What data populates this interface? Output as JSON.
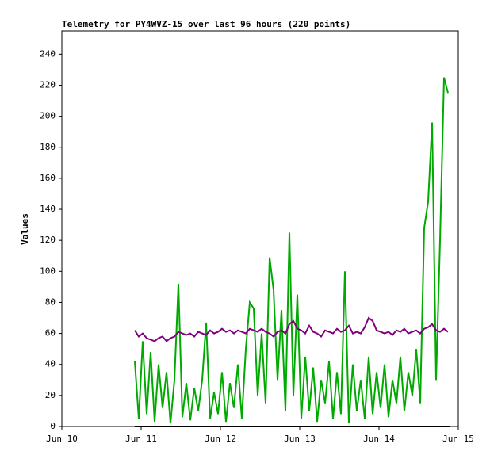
{
  "chart_data": {
    "type": "line",
    "title": "Telemetry for PY4WVZ-15 over last 96 hours (220 points)",
    "y_label": "Values",
    "x": [
      10.92,
      10.97,
      11.02,
      11.07,
      11.12,
      11.17,
      11.22,
      11.27,
      11.32,
      11.37,
      11.42,
      11.47,
      11.52,
      11.57,
      11.62,
      11.67,
      11.72,
      11.77,
      11.82,
      11.87,
      11.92,
      11.97,
      12.02,
      12.07,
      12.12,
      12.17,
      12.22,
      12.27,
      12.32,
      12.37,
      12.42,
      12.47,
      12.52,
      12.57,
      12.62,
      12.67,
      12.72,
      12.77,
      12.82,
      12.87,
      12.92,
      12.97,
      13.02,
      13.07,
      13.12,
      13.17,
      13.22,
      13.27,
      13.32,
      13.37,
      13.42,
      13.47,
      13.52,
      13.57,
      13.62,
      13.67,
      13.72,
      13.77,
      13.82,
      13.87,
      13.92,
      13.97,
      14.02,
      14.07,
      14.12,
      14.17,
      14.22,
      14.27,
      14.32,
      14.37,
      14.42,
      14.47,
      14.52,
      14.57,
      14.62,
      14.67,
      14.72,
      14.77,
      14.82,
      14.87
    ],
    "series": [
      {
        "color": "#00aa00",
        "values": [
          42,
          5,
          55,
          8,
          48,
          3,
          40,
          12,
          35,
          2,
          30,
          92,
          6,
          28,
          4,
          25,
          10,
          30,
          67,
          5,
          22,
          8,
          35,
          3,
          28,
          12,
          40,
          5,
          50,
          80,
          76,
          20,
          60,
          15,
          109,
          88,
          30,
          75,
          10,
          125,
          20,
          85,
          5,
          45,
          10,
          38,
          3,
          30,
          15,
          42,
          5,
          35,
          8,
          100,
          2,
          40,
          10,
          30,
          5,
          45,
          8,
          35,
          12,
          40,
          6,
          30,
          15,
          45,
          10,
          35,
          20,
          50,
          15,
          128,
          145,
          196,
          30,
          120,
          225,
          215
        ]
      },
      {
        "color": "#800080",
        "values": [
          62,
          58,
          60,
          57,
          56,
          55,
          57,
          58,
          55,
          57,
          58,
          61,
          60,
          59,
          60,
          58,
          61,
          60,
          59,
          62,
          60,
          61,
          63,
          61,
          62,
          60,
          62,
          61,
          60,
          63,
          62,
          61,
          63,
          61,
          60,
          58,
          61,
          62,
          60,
          66,
          68,
          63,
          62,
          60,
          65,
          61,
          60,
          58,
          62,
          61,
          60,
          63,
          61,
          62,
          65,
          60,
          61,
          60,
          64,
          70,
          68,
          62,
          61,
          60,
          61,
          59,
          62,
          61,
          63,
          60,
          61,
          62,
          60,
          63,
          64,
          66,
          62,
          61,
          63,
          61
        ]
      },
      {
        "color": "#000000",
        "x": [
          10.92,
          14.9
        ],
        "values": [
          0,
          0
        ]
      }
    ],
    "xlim": [
      10,
      15
    ],
    "xticks": [
      {
        "value": 10,
        "label": "Jun 10"
      },
      {
        "value": 11,
        "label": "Jun 11"
      },
      {
        "value": 12,
        "label": "Jun 12"
      },
      {
        "value": 13,
        "label": "Jun 13"
      },
      {
        "value": 14,
        "label": "Jun 14"
      },
      {
        "value": 15,
        "label": "Jun 15"
      }
    ],
    "ylim": [
      0,
      255
    ],
    "yticks": [
      0,
      20,
      40,
      60,
      80,
      100,
      120,
      140,
      160,
      180,
      200,
      220,
      240
    ]
  }
}
